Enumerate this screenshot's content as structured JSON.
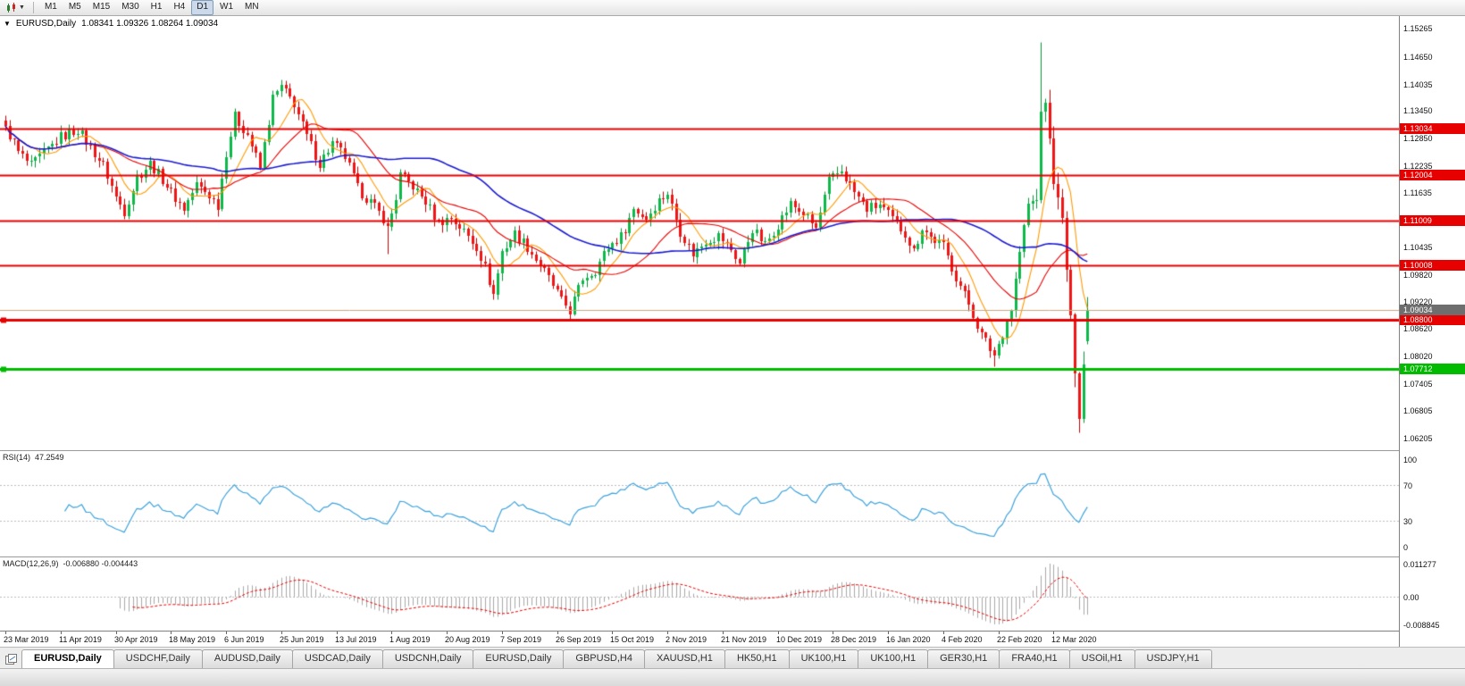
{
  "toolbar": {
    "timeframes": [
      {
        "label": "M1",
        "active": false
      },
      {
        "label": "M5",
        "active": false
      },
      {
        "label": "M15",
        "active": false
      },
      {
        "label": "M30",
        "active": false
      },
      {
        "label": "H1",
        "active": false
      },
      {
        "label": "H4",
        "active": false
      },
      {
        "label": "D1",
        "active": true
      },
      {
        "label": "W1",
        "active": false
      },
      {
        "label": "MN",
        "active": false
      }
    ]
  },
  "chart": {
    "symbol": "EURUSD,Daily",
    "ohlc_text": "1.08341 1.09326 1.08264 1.09034"
  },
  "panels": {
    "rsi_label": "RSI(14)",
    "rsi_value": "47.2549",
    "macd_label": "MACD(12,26,9)",
    "macd_values": "-0.006880 -0.004443"
  },
  "tabs": [
    {
      "label": "EURUSD,Daily",
      "active": true
    },
    {
      "label": "USDCHF,Daily",
      "active": false
    },
    {
      "label": "AUDUSD,Daily",
      "active": false
    },
    {
      "label": "USDCAD,Daily",
      "active": false
    },
    {
      "label": "USDCNH,Daily",
      "active": false
    },
    {
      "label": "EURUSD,Daily",
      "active": false
    },
    {
      "label": "GBPUSD,H4",
      "active": false
    },
    {
      "label": "XAUUSD,H1",
      "active": false
    },
    {
      "label": "HK50,H1",
      "active": false
    },
    {
      "label": "UK100,H1",
      "active": false
    },
    {
      "label": "UK100,H1",
      "active": false
    },
    {
      "label": "GER30,H1",
      "active": false
    },
    {
      "label": "FRA40,H1",
      "active": false
    },
    {
      "label": "USOil,H1",
      "active": false
    },
    {
      "label": "USDJPY,H1",
      "active": false
    }
  ],
  "colors": {
    "up": "#0cba4a",
    "up_wick": "#089038",
    "down": "#f01414",
    "down_wick": "#bf0000",
    "ma_fast": "#ff9900",
    "ma_mid": "#e60000",
    "ma_slow": "#1b1bcf",
    "rsi_line": "#3da2db",
    "rsi_dotted": "#bbbbbb",
    "macd_hist": "#a8a8a8",
    "macd_signal": "#e60000",
    "badge_gray": "#6e6e6e"
  },
  "chart_data": {
    "type": "candlestick",
    "symbol": "EURUSD",
    "timeframe": "Daily",
    "ohlc": {
      "open": 1.08341,
      "high": 1.09326,
      "low": 1.08264,
      "close": 1.09034
    },
    "candle_count": 256,
    "date_tick_interval": 13,
    "x_labels": [
      "23 Mar 2019",
      "11 Apr 2019",
      "30 Apr 2019",
      "18 May 2019",
      "6 Jun 2019",
      "25 Jun 2019",
      "13 Jul 2019",
      "1 Aug 2019",
      "20 Aug 2019",
      "7 Sep 2019",
      "26 Sep 2019",
      "15 Oct 2019",
      "2 Nov 2019",
      "21 Nov 2019",
      "10 Dec 2019",
      "28 Dec 2019",
      "16 Jan 2020",
      "4 Feb 2020",
      "22 Feb 2020",
      "12 Mar 2020"
    ],
    "y_axis_labels": [
      "1.15265",
      "1.14650",
      "1.14035",
      "1.13450",
      "1.12850",
      "1.12235",
      "1.11635",
      "1.10435",
      "1.09820",
      "1.09220",
      "1.08620",
      "1.08020",
      "1.07405",
      "1.06805",
      "1.06205"
    ],
    "price_top": 1.1553,
    "price_bottom": 1.0592,
    "levels": [
      {
        "value": 1.13034,
        "label": "1.13034",
        "color": "#e60000",
        "width": 2,
        "marker": false
      },
      {
        "value": 1.12004,
        "label": "1.12004",
        "color": "#e60000",
        "width": 2,
        "marker": false
      },
      {
        "value": 1.11009,
        "label": "1.11009",
        "color": "#e60000",
        "width": 2,
        "marker": false
      },
      {
        "value": 1.10008,
        "label": "1.10008",
        "color": "#e60000",
        "width": 2,
        "marker": false
      },
      {
        "value": 1.088,
        "label": "1.08800",
        "color": "#e60000",
        "width": 3,
        "marker": true
      },
      {
        "value": 1.07712,
        "label": "1.07712",
        "color": "#00bb00",
        "width": 3,
        "marker": true
      }
    ],
    "bid": {
      "value": 1.09034,
      "label": "1.09034",
      "line_color": "#c4a882"
    },
    "ma": [
      {
        "period": 8,
        "color": "#ff9900",
        "width": 1.1
      },
      {
        "period": 21,
        "color": "#e60000",
        "width": 1.1
      },
      {
        "period": 50,
        "color": "#1b1bcf",
        "width": 1.6
      }
    ],
    "anchors": [
      [
        0,
        1.131
      ],
      [
        3,
        1.1252
      ],
      [
        6,
        1.1222
      ],
      [
        10,
        1.1258
      ],
      [
        13,
        1.1285
      ],
      [
        17,
        1.1302
      ],
      [
        20,
        1.1262
      ],
      [
        23,
        1.1222
      ],
      [
        26,
        1.1152
      ],
      [
        28,
        1.1122
      ],
      [
        31,
        1.1196
      ],
      [
        34,
        1.1226
      ],
      [
        37,
        1.1192
      ],
      [
        39,
        1.1162
      ],
      [
        42,
        1.1126
      ],
      [
        45,
        1.118
      ],
      [
        48,
        1.1156
      ],
      [
        50,
        1.1136
      ],
      [
        52,
        1.1252
      ],
      [
        54,
        1.133
      ],
      [
        57,
        1.1292
      ],
      [
        60,
        1.1216
      ],
      [
        63,
        1.1372
      ],
      [
        65,
        1.1396
      ],
      [
        68,
        1.136
      ],
      [
        71,
        1.1286
      ],
      [
        74,
        1.1226
      ],
      [
        77,
        1.1272
      ],
      [
        80,
        1.1242
      ],
      [
        83,
        1.1172
      ],
      [
        86,
        1.1142
      ],
      [
        89,
        1.1106
      ],
      [
        90,
        1.1082
      ],
      [
        92,
        1.1152
      ],
      [
        93,
        1.12
      ],
      [
        96,
        1.1176
      ],
      [
        99,
        1.1142
      ],
      [
        102,
        1.1096
      ],
      [
        105,
        1.1106
      ],
      [
        108,
        1.1076
      ],
      [
        111,
        1.1042
      ],
      [
        113,
        1.0996
      ],
      [
        115,
        1.0936
      ],
      [
        117,
        1.1032
      ],
      [
        120,
        1.1072
      ],
      [
        123,
        1.1042
      ],
      [
        126,
        1.1002
      ],
      [
        129,
        1.0956
      ],
      [
        131,
        1.0922
      ],
      [
        133,
        1.0902
      ],
      [
        136,
        1.0972
      ],
      [
        139,
        1.0992
      ],
      [
        142,
        1.1042
      ],
      [
        145,
        1.1066
      ],
      [
        148,
        1.1126
      ],
      [
        151,
        1.1106
      ],
      [
        154,
        1.1146
      ],
      [
        156,
        1.1162
      ],
      [
        159,
        1.1076
      ],
      [
        162,
        1.1026
      ],
      [
        165,
        1.1056
      ],
      [
        168,
        1.1066
      ],
      [
        171,
        1.1036
      ],
      [
        173,
        1.1006
      ],
      [
        176,
        1.1082
      ],
      [
        179,
        1.1046
      ],
      [
        182,
        1.1092
      ],
      [
        185,
        1.1136
      ],
      [
        188,
        1.1116
      ],
      [
        191,
        1.1082
      ],
      [
        194,
        1.1186
      ],
      [
        197,
        1.1212
      ],
      [
        200,
        1.1162
      ],
      [
        203,
        1.1126
      ],
      [
        206,
        1.1136
      ],
      [
        209,
        1.1102
      ],
      [
        212,
        1.1072
      ],
      [
        214,
        1.1032
      ],
      [
        216,
        1.1086
      ],
      [
        218,
        1.1062
      ],
      [
        221,
        1.1042
      ],
      [
        224,
        1.0976
      ],
      [
        227,
        1.0916
      ],
      [
        230,
        1.0846
      ],
      [
        233,
        1.0802
      ],
      [
        235,
        1.0852
      ],
      [
        237,
        1.0906
      ],
      [
        239,
        1.1032
      ],
      [
        241,
        1.1136
      ],
      [
        243,
        1.1146
      ],
      [
        244,
        1.1342
      ],
      [
        245,
        1.1362
      ],
      [
        246,
        1.1282
      ],
      [
        247,
        1.1182
      ],
      [
        248,
        1.1152
      ],
      [
        249,
        1.1106
      ],
      [
        250,
        1.0992
      ],
      [
        251,
        1.0892
      ],
      [
        252,
        1.0762
      ],
      [
        253,
        1.0662
      ],
      [
        254,
        1.0782
      ],
      [
        255,
        1.0903
      ]
    ],
    "spikes": [
      {
        "i": 65,
        "side": "high",
        "price": 1.1412
      },
      {
        "i": 90,
        "side": "low",
        "price": 1.1027
      },
      {
        "i": 116,
        "side": "low",
        "price": 1.0926
      },
      {
        "i": 133,
        "side": "low",
        "price": 1.0879
      },
      {
        "i": 233,
        "side": "low",
        "price": 1.0778
      },
      {
        "i": 244,
        "side": "high",
        "price": 1.1495
      },
      {
        "i": 253,
        "side": "low",
        "price": 1.0636
      }
    ],
    "last_candle": [
      1.08341,
      1.09326,
      1.08264,
      1.09034
    ],
    "rsi": {
      "period": 14,
      "value": 47.2549,
      "levels": [
        "100",
        "70",
        "30",
        "0"
      ],
      "level_values": [
        100,
        70,
        30,
        0
      ]
    },
    "macd": {
      "fast": 12,
      "slow": 26,
      "signal": 9,
      "value": -0.00688,
      "signal_value": -0.004443,
      "axis_labels": [
        "0.011277",
        "0.00",
        "-0.008845"
      ]
    }
  }
}
